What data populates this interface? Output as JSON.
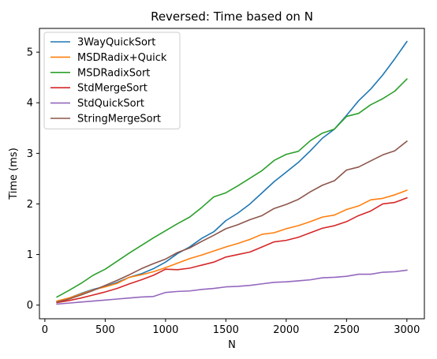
{
  "chart_data": {
    "type": "line",
    "title": "Reversed: Time based on N",
    "xlabel": "N",
    "ylabel": "Time (ms)",
    "xlim": [
      -45,
      3145
    ],
    "ylim": [
      -0.27,
      5.47
    ],
    "xticks": [
      0,
      500,
      1000,
      1500,
      2000,
      2500,
      3000
    ],
    "yticks": [
      0,
      1,
      2,
      3,
      4,
      5
    ],
    "grid": false,
    "legend_position": "top-left",
    "x": [
      100,
      200,
      300,
      400,
      500,
      600,
      700,
      800,
      900,
      1000,
      1100,
      1200,
      1300,
      1400,
      1500,
      1600,
      1700,
      1800,
      1900,
      2000,
      2100,
      2200,
      2300,
      2400,
      2500,
      2600,
      2700,
      2800,
      2900,
      3000
    ],
    "series": [
      {
        "name": "3WayQuickSort",
        "color": "#1f77b4",
        "values": [
          0.07,
          0.14,
          0.23,
          0.31,
          0.37,
          0.45,
          0.55,
          0.62,
          0.72,
          0.85,
          1.02,
          1.15,
          1.32,
          1.45,
          1.67,
          1.82,
          2.0,
          2.22,
          2.44,
          2.63,
          2.82,
          3.05,
          3.3,
          3.48,
          3.75,
          4.04,
          4.27,
          4.55,
          4.87,
          5.21
        ]
      },
      {
        "name": "MSDRadix+Quick",
        "color": "#ff7f0e",
        "values": [
          0.08,
          0.14,
          0.22,
          0.3,
          0.36,
          0.43,
          0.55,
          0.6,
          0.66,
          0.74,
          0.83,
          0.92,
          0.99,
          1.07,
          1.15,
          1.22,
          1.3,
          1.4,
          1.43,
          1.51,
          1.57,
          1.65,
          1.74,
          1.78,
          1.89,
          1.96,
          2.08,
          2.11,
          2.18,
          2.27
        ]
      },
      {
        "name": "MSDRadixSort",
        "color": "#2ca02c",
        "values": [
          0.16,
          0.29,
          0.43,
          0.59,
          0.71,
          0.87,
          1.03,
          1.18,
          1.33,
          1.47,
          1.61,
          1.74,
          1.93,
          2.14,
          2.22,
          2.36,
          2.51,
          2.66,
          2.86,
          2.98,
          3.04,
          3.25,
          3.4,
          3.48,
          3.73,
          3.79,
          3.96,
          4.08,
          4.23,
          4.47
        ]
      },
      {
        "name": "StdMergeSort",
        "color": "#d62728",
        "values": [
          0.05,
          0.09,
          0.14,
          0.2,
          0.26,
          0.33,
          0.42,
          0.5,
          0.59,
          0.71,
          0.7,
          0.73,
          0.79,
          0.85,
          0.95,
          1.0,
          1.05,
          1.15,
          1.25,
          1.28,
          1.34,
          1.43,
          1.52,
          1.57,
          1.65,
          1.77,
          1.86,
          2.0,
          2.03,
          2.12
        ]
      },
      {
        "name": "StdQuickSort",
        "color": "#9467bd",
        "values": [
          0.02,
          0.04,
          0.06,
          0.08,
          0.1,
          0.12,
          0.14,
          0.16,
          0.17,
          0.25,
          0.27,
          0.28,
          0.31,
          0.33,
          0.36,
          0.37,
          0.39,
          0.42,
          0.45,
          0.46,
          0.48,
          0.5,
          0.54,
          0.55,
          0.57,
          0.61,
          0.61,
          0.65,
          0.66,
          0.69
        ]
      },
      {
        "name": "StringMergeSort",
        "color": "#8c564b",
        "values": [
          0.06,
          0.12,
          0.2,
          0.29,
          0.39,
          0.49,
          0.6,
          0.72,
          0.82,
          0.91,
          1.04,
          1.13,
          1.26,
          1.38,
          1.51,
          1.59,
          1.69,
          1.77,
          1.91,
          1.99,
          2.09,
          2.24,
          2.37,
          2.46,
          2.67,
          2.73,
          2.85,
          2.97,
          3.05,
          3.24
        ]
      }
    ]
  }
}
